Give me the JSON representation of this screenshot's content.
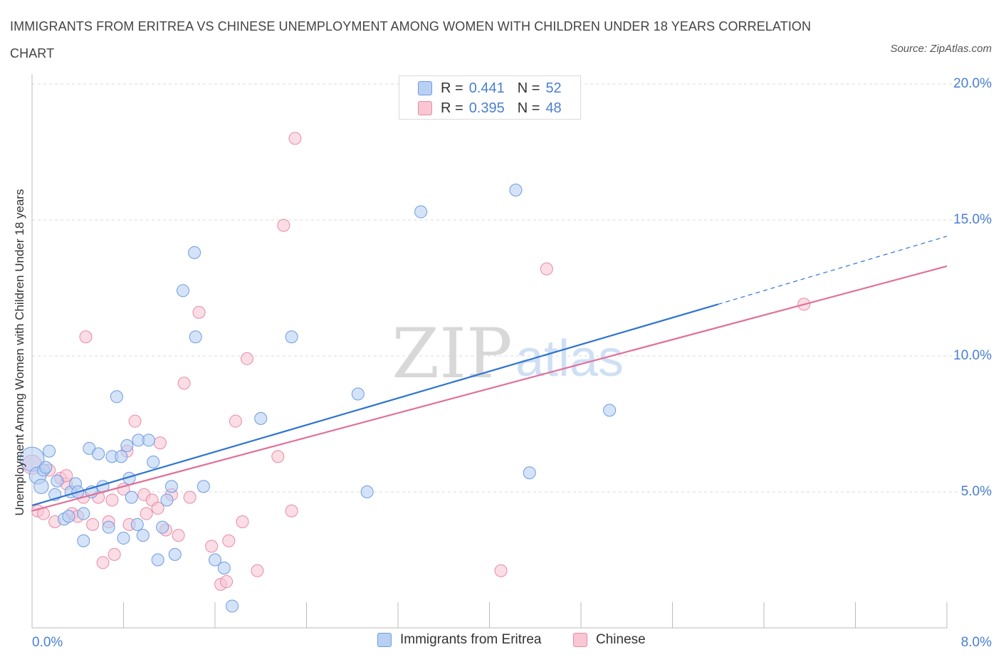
{
  "header": {
    "title": "IMMIGRANTS FROM ERITREA VS CHINESE UNEMPLOYMENT AMONG WOMEN WITH CHILDREN UNDER 18 YEARS CORRELATION CHART",
    "source": "Source: ZipAtlas.com"
  },
  "legend": {
    "rows": [
      {
        "r_label": "R =",
        "r_value": "0.441",
        "n_label": "N =",
        "n_value": "52"
      },
      {
        "r_label": "R =",
        "r_value": "0.395",
        "n_label": "N =",
        "n_value": "48"
      }
    ]
  },
  "bottom_legend": {
    "items": [
      {
        "label": "Immigrants from Eritrea"
      },
      {
        "label": "Chinese"
      }
    ]
  },
  "watermark": {
    "zip": "ZIP",
    "atlas": "atlas"
  },
  "colors": {
    "blue_fill": "#b8d0f4",
    "blue_stroke": "#6f9be0",
    "blue_line": "#2f74d0",
    "pink_fill": "#f9c6d4",
    "pink_stroke": "#e98aa6",
    "pink_line": "#e0719a",
    "grid": "#d8d8d8",
    "tick_label": "#4a7fd0"
  },
  "chart_data": {
    "type": "scatter",
    "title": "IMMIGRANTS FROM ERITREA VS CHINESE UNEMPLOYMENT AMONG WOMEN WITH CHILDREN UNDER 18 YEARS CORRELATION CHART",
    "xlabel": "",
    "ylabel": "Unemployment Among Women with Children Under 18 years",
    "xlim": [
      0,
      8
    ],
    "ylim": [
      0,
      20.5
    ],
    "x_tick_labels": [
      {
        "value": 0,
        "label": "0.0%"
      },
      {
        "value": 8,
        "label": "8.0%"
      }
    ],
    "y_tick_labels": [
      {
        "value": 5,
        "label": "5.0%"
      },
      {
        "value": 10,
        "label": "10.0%"
      },
      {
        "value": 15,
        "label": "15.0%"
      },
      {
        "value": 20,
        "label": "20.0%"
      }
    ],
    "series": [
      {
        "name": "Immigrants from Eritrea",
        "color": "blue",
        "R": 0.441,
        "N": 52,
        "trend": {
          "x0": 0,
          "y0": 4.5,
          "x1": 6.0,
          "y1": 11.9,
          "dash_to_x": 8.0,
          "dash_to_y": 14.4
        },
        "points": [
          [
            0.0,
            6.2,
            2.0
          ],
          [
            0.05,
            5.6,
            1.4
          ],
          [
            0.1,
            5.8,
            1.0
          ],
          [
            0.15,
            6.5,
            1.0
          ],
          [
            0.08,
            5.2,
            1.2
          ],
          [
            0.2,
            4.9,
            1.0
          ],
          [
            0.22,
            5.4,
            1.0
          ],
          [
            0.28,
            4.0,
            1.0
          ],
          [
            0.32,
            4.1,
            1.0
          ],
          [
            0.34,
            5.0,
            1.0
          ],
          [
            0.38,
            5.3,
            1.0
          ],
          [
            0.4,
            5.0,
            1.0
          ],
          [
            0.45,
            4.2,
            1.0
          ],
          [
            0.45,
            3.2,
            1.0
          ],
          [
            0.5,
            6.6,
            1.0
          ],
          [
            0.52,
            5.0,
            1.0
          ],
          [
            0.58,
            6.4,
            1.0
          ],
          [
            0.62,
            5.2,
            1.0
          ],
          [
            0.67,
            3.7,
            1.0
          ],
          [
            0.7,
            6.3,
            1.0
          ],
          [
            0.74,
            8.5,
            1.0
          ],
          [
            0.78,
            6.3,
            1.0
          ],
          [
            0.8,
            3.3,
            1.0
          ],
          [
            0.83,
            6.7,
            1.0
          ],
          [
            0.87,
            4.8,
            1.0
          ],
          [
            0.92,
            3.8,
            1.0
          ],
          [
            0.93,
            6.9,
            1.0
          ],
          [
            0.97,
            3.4,
            1.0
          ],
          [
            1.02,
            6.9,
            1.0
          ],
          [
            1.06,
            6.1,
            1.0
          ],
          [
            1.1,
            2.5,
            1.0
          ],
          [
            1.14,
            3.7,
            1.0
          ],
          [
            1.18,
            4.7,
            1.0
          ],
          [
            1.22,
            5.2,
            1.0
          ],
          [
            1.25,
            2.7,
            1.0
          ],
          [
            1.32,
            12.4,
            1.0
          ],
          [
            1.42,
            13.8,
            1.0
          ],
          [
            1.43,
            10.7,
            1.0
          ],
          [
            1.5,
            5.2,
            1.0
          ],
          [
            1.6,
            2.5,
            1.0
          ],
          [
            1.68,
            2.2,
            1.0
          ],
          [
            1.75,
            0.8,
            1.0
          ],
          [
            2.0,
            7.7,
            1.0
          ],
          [
            2.27,
            10.7,
            1.0
          ],
          [
            2.93,
            5.0,
            1.0
          ],
          [
            2.85,
            8.6,
            1.0
          ],
          [
            3.4,
            15.3,
            1.0
          ],
          [
            4.23,
            16.1,
            1.0
          ],
          [
            4.35,
            5.7,
            1.0
          ],
          [
            5.05,
            8.0,
            1.0
          ],
          [
            0.85,
            5.5,
            1.0
          ],
          [
            0.12,
            5.9,
            1.0
          ]
        ]
      },
      {
        "name": "Chinese",
        "color": "pink",
        "R": 0.395,
        "N": 48,
        "trend": {
          "x0": 0,
          "y0": 4.3,
          "x1": 8.0,
          "y1": 13.3
        },
        "points": [
          [
            0.0,
            6.0,
            1.6
          ],
          [
            0.05,
            4.3,
            1.0
          ],
          [
            0.1,
            4.2,
            1.0
          ],
          [
            0.15,
            5.8,
            1.0
          ],
          [
            0.2,
            3.9,
            1.0
          ],
          [
            0.25,
            5.5,
            1.0
          ],
          [
            0.3,
            5.3,
            1.0
          ],
          [
            0.35,
            4.2,
            1.0
          ],
          [
            0.4,
            4.1,
            1.0
          ],
          [
            0.45,
            4.8,
            1.0
          ],
          [
            0.47,
            10.7,
            1.0
          ],
          [
            0.53,
            3.8,
            1.0
          ],
          [
            0.58,
            4.8,
            1.0
          ],
          [
            0.62,
            2.4,
            1.0
          ],
          [
            0.67,
            3.9,
            1.0
          ],
          [
            0.7,
            4.7,
            1.0
          ],
          [
            0.72,
            2.7,
            1.0
          ],
          [
            0.8,
            5.1,
            1.0
          ],
          [
            0.83,
            6.5,
            1.0
          ],
          [
            0.85,
            3.8,
            1.0
          ],
          [
            0.9,
            7.6,
            1.0
          ],
          [
            0.98,
            4.9,
            1.0
          ],
          [
            1.0,
            4.2,
            1.0
          ],
          [
            1.05,
            4.7,
            1.0
          ],
          [
            1.1,
            4.4,
            1.0
          ],
          [
            1.12,
            6.8,
            1.0
          ],
          [
            1.17,
            3.6,
            1.0
          ],
          [
            1.22,
            4.9,
            1.0
          ],
          [
            1.28,
            3.4,
            1.0
          ],
          [
            1.33,
            9.0,
            1.0
          ],
          [
            1.38,
            4.8,
            1.0
          ],
          [
            1.46,
            11.6,
            1.0
          ],
          [
            1.57,
            3.0,
            1.0
          ],
          [
            1.65,
            1.6,
            1.0
          ],
          [
            1.7,
            1.7,
            1.0
          ],
          [
            1.72,
            3.2,
            1.0
          ],
          [
            1.78,
            7.6,
            1.0
          ],
          [
            1.84,
            3.9,
            1.0
          ],
          [
            1.88,
            9.9,
            1.0
          ],
          [
            1.97,
            2.1,
            1.0
          ],
          [
            2.15,
            6.3,
            1.0
          ],
          [
            2.2,
            14.8,
            1.0
          ],
          [
            2.27,
            4.3,
            1.0
          ],
          [
            2.3,
            18.0,
            1.0
          ],
          [
            4.1,
            2.1,
            1.0
          ],
          [
            4.5,
            13.2,
            1.0
          ],
          [
            6.75,
            11.9,
            1.0
          ],
          [
            0.3,
            5.6,
            1.0
          ]
        ]
      }
    ]
  }
}
